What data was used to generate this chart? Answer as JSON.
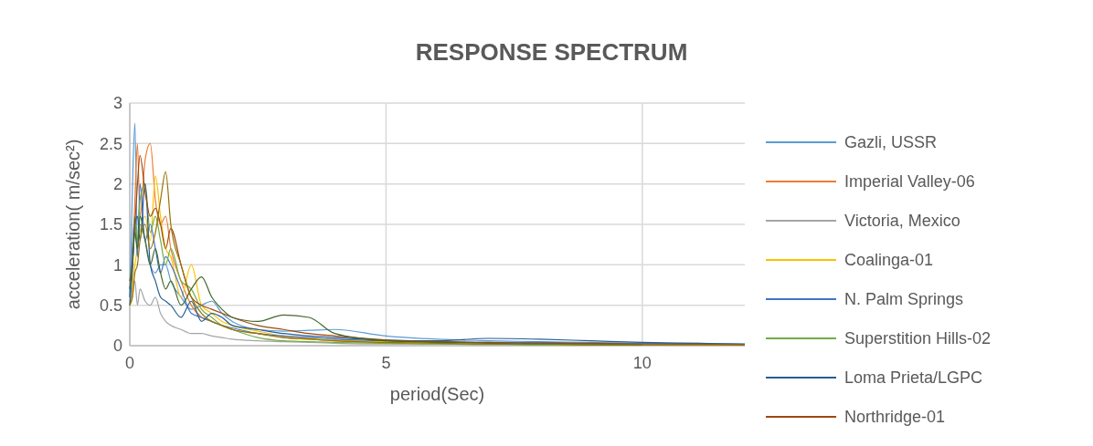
{
  "chart_data": {
    "type": "line",
    "title": "RESPONSE SPECTRUM",
    "xlabel": "period(Sec)",
    "ylabel": "acceleration( m/sec²)",
    "x": [
      0,
      0.05,
      0.1,
      0.15,
      0.2,
      0.3,
      0.4,
      0.5,
      0.6,
      0.7,
      0.8,
      1.0,
      1.2,
      1.4,
      1.6,
      1.8,
      2,
      2.5,
      3,
      3.5,
      4,
      5,
      6,
      7,
      8,
      9,
      10,
      11,
      12
    ],
    "xlim": [
      0,
      12
    ],
    "xticks": [
      0,
      5,
      10
    ],
    "ylim": [
      0,
      3
    ],
    "yticks": [
      0,
      0.5,
      1,
      1.5,
      2,
      2.5,
      3
    ],
    "grid": true,
    "legend": "right",
    "series": [
      {
        "name": "Gazli, USSR",
        "color": "#5b9bd5",
        "values": [
          0.6,
          1.9,
          2.75,
          1.2,
          1.5,
          1.3,
          1.0,
          0.9,
          1.0,
          1.0,
          0.8,
          0.6,
          0.45,
          0.5,
          0.55,
          0.4,
          0.3,
          0.2,
          0.18,
          0.19,
          0.2,
          0.12,
          0.08,
          0.06,
          0.05,
          0.04,
          0.03,
          0.03,
          0.02
        ]
      },
      {
        "name": "Imperial Valley-06",
        "color": "#ed7d31",
        "values": [
          0.7,
          1.0,
          1.8,
          2.5,
          1.6,
          2.3,
          2.5,
          1.8,
          1.5,
          1.6,
          1.2,
          0.8,
          0.5,
          0.35,
          0.3,
          0.25,
          0.2,
          0.15,
          0.1,
          0.08,
          0.06,
          0.04,
          null,
          null,
          null,
          null,
          null,
          null,
          null
        ]
      },
      {
        "name": "Victoria, Mexico",
        "color": "#a5a5a5",
        "values": [
          0.5,
          0.6,
          0.8,
          0.5,
          0.7,
          0.55,
          0.5,
          0.6,
          0.4,
          0.3,
          0.25,
          0.2,
          0.15,
          0.15,
          0.12,
          0.1,
          0.08,
          0.06,
          0.05,
          0.04,
          0.03,
          0.02,
          0.02,
          0.01,
          0.01,
          0.01,
          0.01,
          0.01,
          0.01
        ]
      },
      {
        "name": "Coalinga-01",
        "color": "#ffc000",
        "values": [
          0.5,
          0.7,
          1.0,
          1.2,
          1.4,
          1.6,
          1.3,
          2.1,
          1.6,
          1.2,
          1.1,
          0.6,
          1.0,
          0.5,
          0.4,
          0.3,
          0.25,
          0.18,
          0.12,
          0.09,
          0.07,
          0.05,
          0.04,
          null,
          null,
          null,
          null,
          null,
          null
        ]
      },
      {
        "name": "N. Palm Springs",
        "color": "#4472c4",
        "values": [
          0.6,
          1.2,
          1.6,
          1.1,
          2.0,
          1.3,
          1.5,
          1.2,
          0.9,
          1.1,
          1.0,
          0.7,
          0.4,
          0.35,
          0.3,
          0.25,
          0.22,
          0.15,
          0.12,
          0.1,
          0.08,
          0.06,
          0.05,
          0.04,
          0.04,
          0.03,
          0.03,
          0.02,
          0.02
        ]
      },
      {
        "name": "Superstition Hills-02",
        "color": "#70ad47",
        "values": [
          0.8,
          1.0,
          1.6,
          1.3,
          1.8,
          2.0,
          1.4,
          1.6,
          1.3,
          1.0,
          1.2,
          0.8,
          0.7,
          0.45,
          0.35,
          0.25,
          0.2,
          0.1,
          0.06,
          0.05,
          0.04,
          0.03,
          0.02,
          0.02,
          0.01,
          0.01,
          0.01,
          null,
          null
        ]
      },
      {
        "name": "Loma Prieta/LGPC",
        "color": "#255e91",
        "values": [
          0.5,
          0.9,
          1.5,
          1.6,
          1.3,
          2.0,
          1.0,
          0.8,
          0.6,
          0.55,
          0.5,
          0.35,
          0.55,
          0.3,
          0.4,
          0.35,
          0.25,
          0.2,
          0.15,
          0.12,
          0.1,
          0.07,
          0.06,
          0.09,
          0.08,
          0.06,
          0.04,
          0.03,
          0.02
        ]
      },
      {
        "name": "Northridge-01",
        "color": "#9e480e",
        "values": [
          0.8,
          1.0,
          1.5,
          2.0,
          2.35,
          1.9,
          1.6,
          1.7,
          1.5,
          1.2,
          1.45,
          1.0,
          0.6,
          0.5,
          0.45,
          0.4,
          0.35,
          0.25,
          0.2,
          0.15,
          0.12,
          0.07,
          0.05,
          0.04,
          0.03,
          0.03,
          0.02,
          0.02,
          0.01
        ]
      },
      {
        "color": "#43682b",
        "values": [
          0.7,
          1.0,
          1.4,
          1.2,
          1.6,
          1.3,
          1.0,
          1.2,
          0.9,
          0.7,
          0.8,
          0.5,
          0.7,
          0.85,
          0.6,
          0.45,
          0.35,
          0.3,
          0.38,
          0.35,
          0.15,
          0.06,
          0.04,
          0.03,
          0.02,
          0.02,
          0.01,
          null,
          null
        ]
      },
      {
        "color": "#997300",
        "values": [
          0.5,
          0.6,
          0.9,
          1.0,
          1.3,
          1.5,
          1.2,
          1.4,
          1.8,
          2.15,
          1.5,
          1.0,
          0.6,
          0.4,
          0.3,
          0.25,
          0.2,
          0.15,
          0.1,
          0.08,
          0.06,
          0.04,
          0.03,
          0.02,
          0.02,
          0.01,
          0.01,
          0.01,
          0.01
        ]
      }
    ]
  }
}
